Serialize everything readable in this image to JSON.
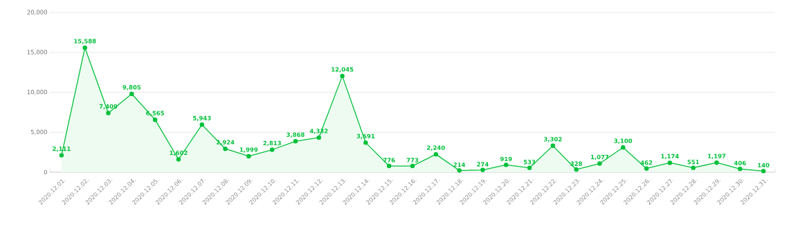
{
  "chart_data": {
    "type": "area",
    "categories": [
      "2020.12.01.",
      "2020.12.02.",
      "2020.12.03.",
      "2020.12.04.",
      "2020.12.05.",
      "2020.12.06.",
      "2020.12.07.",
      "2020.12.08.",
      "2020.12.09.",
      "2020.12.10.",
      "2020.12.11.",
      "2020.12.12.",
      "2020.12.13.",
      "2020.12.14.",
      "2020.12.15.",
      "2020.12.16.",
      "2020.12.17.",
      "2020.12.18.",
      "2020.12.19.",
      "2020.12.20.",
      "2020.12.21.",
      "2020.12.22.",
      "2020.12.23.",
      "2020.12.24.",
      "2020.12.25.",
      "2020.12.26.",
      "2020.12.27.",
      "2020.12.28.",
      "2020.12.29.",
      "2020.12.30.",
      "2020.12.31."
    ],
    "series": [
      {
        "color": "#00c03a",
        "values": [
          2111,
          15588,
          7409,
          9805,
          6565,
          1602,
          5943,
          2924,
          1999,
          2813,
          3868,
          4332,
          12045,
          3691,
          776,
          773,
          2240,
          214,
          274,
          919,
          533,
          3302,
          328,
          1077,
          3100,
          462,
          1174,
          551,
          1197,
          406,
          140
        ],
        "value_labels": [
          "2,111",
          "15,588",
          "7,409",
          "9,805",
          "6,565",
          "1,602",
          "5,943",
          "2,924",
          "1,999",
          "2,813",
          "3,868",
          "4,332",
          "12,045",
          "3,691",
          "776",
          "773",
          "2,240",
          "214",
          "274",
          "919",
          "533",
          "3,302",
          "328",
          "1,077",
          "3,100",
          "462",
          "1,174",
          "551",
          "1,197",
          "406",
          "140"
        ]
      }
    ],
    "ylim": [
      0,
      20000
    ],
    "yticks": [
      0,
      {
        "value": 5000,
        "label": "5,000"
      },
      {
        "value": 10000,
        "label": "10,000"
      },
      {
        "value": 15000,
        "label": "15,000"
      },
      {
        "value": 20000,
        "label": "20,000"
      }
    ],
    "grid": "y",
    "marker": "circle"
  }
}
